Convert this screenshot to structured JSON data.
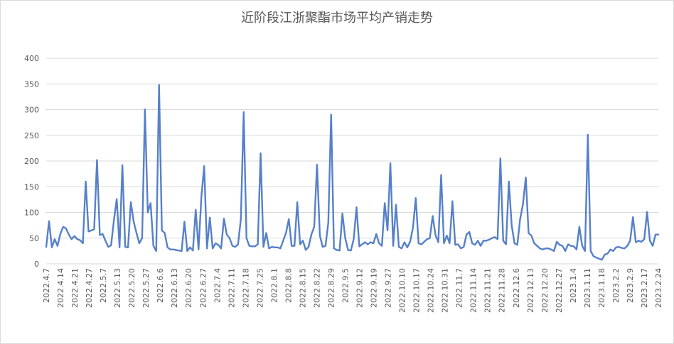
{
  "chart_data": {
    "type": "line",
    "title": "近阶段江浙聚酯市场平均产销走势",
    "ylim": [
      0,
      400
    ],
    "yticks": [
      0,
      50,
      100,
      150,
      200,
      250,
      300,
      350,
      400
    ],
    "grid": true,
    "xtick_labels": [
      "2022.4.7",
      "2022.4.14",
      "2022.4.21",
      "2022.4.27",
      "2022.5.7",
      "2022.5.13",
      "2022.5.20",
      "2022.5.27",
      "2022.6.6",
      "2022.6.13",
      "2022.6.20",
      "2022.6.27",
      "2022.7.4",
      "2022.7.11",
      "2022.7.18",
      "2022.7.25",
      "2022.8.1",
      "2022.8.8",
      "2022.8.15",
      "2022.8.22",
      "2022.8.29",
      "2022.9.5",
      "2022.9.12",
      "2022.9.19",
      "2022.9.27",
      "2022.10.10",
      "2022.10.17",
      "2022.10.24",
      "2022.10.31",
      "2022.11.7",
      "2022.11.14",
      "2022.11.21",
      "2022.11.28",
      "2022.12.6",
      "2022.12.13",
      "2022.12.20",
      "2022.12.27",
      "2023.1.4",
      "2023.1.11",
      "2023.1.18",
      "2023.2.2",
      "2023.2.9",
      "2023.2.17",
      "2023.2.24"
    ],
    "series": [
      {
        "values": [
          33,
          83,
          32,
          48,
          35,
          58,
          72,
          69,
          57,
          48,
          54,
          48,
          46,
          40,
          160,
          63,
          65,
          67,
          202,
          56,
          58,
          45,
          33,
          36,
          85,
          126,
          32,
          192,
          33,
          32,
          120,
          82,
          60,
          40,
          50,
          300,
          100,
          118,
          35,
          25,
          348,
          65,
          60,
          32,
          28,
          28,
          27,
          26,
          25,
          82,
          25,
          32,
          26,
          105,
          28,
          130,
          190,
          30,
          90,
          30,
          40,
          37,
          30,
          88,
          57,
          50,
          35,
          33,
          38,
          87,
          295,
          50,
          35,
          34,
          34,
          38,
          215,
          33,
          60,
          30,
          33,
          32,
          32,
          30,
          45,
          60,
          87,
          35,
          35,
          120,
          38,
          45,
          27,
          33,
          57,
          72,
          193,
          55,
          33,
          35,
          80,
          290,
          30,
          27,
          26,
          98,
          50,
          27,
          26,
          48,
          110,
          34,
          38,
          42,
          38,
          42,
          40,
          58,
          40,
          35,
          118,
          65,
          196,
          35,
          115,
          33,
          30,
          42,
          32,
          43,
          70,
          128,
          40,
          38,
          43,
          48,
          50,
          93,
          56,
          42,
          173,
          40,
          55,
          40,
          122,
          37,
          38,
          30,
          33,
          57,
          62,
          40,
          37,
          45,
          35,
          45,
          45,
          47,
          50,
          52,
          48,
          205,
          45,
          38,
          160,
          75,
          40,
          37,
          87,
          116,
          168,
          60,
          55,
          40,
          35,
          30,
          28,
          30,
          30,
          28,
          25,
          43,
          37,
          35,
          25,
          38,
          35,
          34,
          28,
          72,
          35,
          25,
          251,
          25,
          15,
          12,
          10,
          8,
          18,
          20,
          28,
          25,
          32,
          33,
          31,
          30,
          35,
          45,
          91,
          42,
          45,
          43,
          48,
          101,
          45,
          35,
          57,
          57
        ]
      }
    ]
  }
}
